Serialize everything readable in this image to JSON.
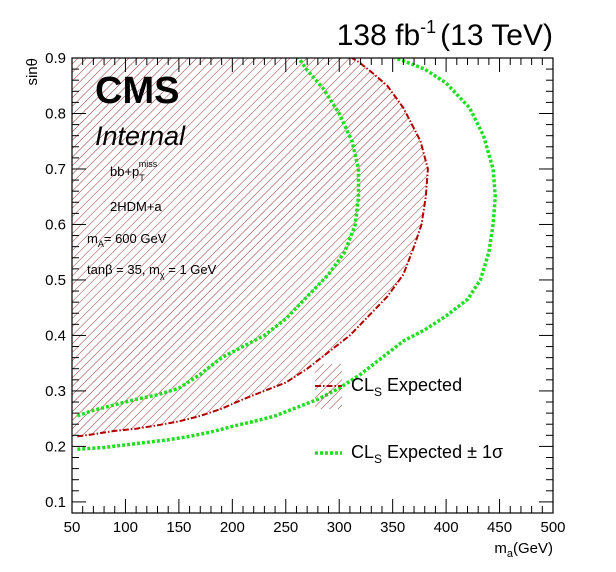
{
  "header": {
    "lumi": "138 fb",
    "lumi_sup": "-1",
    "energy": "(13 TeV)"
  },
  "labels": {
    "cms": "CMS",
    "internal": "Internal",
    "info1": "bb+p",
    "info1_sub": "T",
    "info1_sup": "miss",
    "info2": "2HDM+a",
    "info3_pre": "m",
    "info3_sub": "A",
    "info3_post": "= 600 GeV",
    "info4_pre": "tanβ = 35, m",
    "info4_sub": "χ",
    "info4_post": " = 1 GeV"
  },
  "legend": {
    "expected_pre": "CL",
    "expected_sub": "S",
    "expected_post": " Expected",
    "band_pre": "CL",
    "band_sub": "S",
    "band_post": " Expected ± 1σ"
  },
  "colors": {
    "expected": "#b00000",
    "band": "#22dd22",
    "hatch": "#8b2020"
  },
  "chart_data": {
    "type": "line",
    "xlabel_pre": "m",
    "xlabel_sub": "a",
    "xlabel_post": "(GeV)",
    "ylabel": "sinθ",
    "xlim": [
      50,
      500
    ],
    "ylim": [
      0.08,
      0.9
    ],
    "x_ticks": [
      50,
      100,
      150,
      200,
      250,
      300,
      350,
      400,
      450,
      500
    ],
    "y_ticks": [
      0.1,
      0.2,
      0.3,
      0.4,
      0.5,
      0.6,
      0.7,
      0.8,
      0.9
    ],
    "series": [
      {
        "key": "expected",
        "style": "dash-dot",
        "points": [
          [
            55,
            0.218
          ],
          [
            70,
            0.222
          ],
          [
            90,
            0.228
          ],
          [
            110,
            0.232
          ],
          [
            130,
            0.238
          ],
          [
            150,
            0.245
          ],
          [
            170,
            0.255
          ],
          [
            190,
            0.268
          ],
          [
            210,
            0.285
          ],
          [
            230,
            0.3
          ],
          [
            250,
            0.315
          ],
          [
            270,
            0.34
          ],
          [
            290,
            0.37
          ],
          [
            310,
            0.4
          ],
          [
            330,
            0.44
          ],
          [
            345,
            0.47
          ],
          [
            360,
            0.51
          ],
          [
            370,
            0.56
          ],
          [
            377,
            0.6
          ],
          [
            381,
            0.65
          ],
          [
            383,
            0.7
          ],
          [
            376,
            0.75
          ],
          [
            360,
            0.81
          ],
          [
            345,
            0.85
          ],
          [
            330,
            0.875
          ],
          [
            318,
            0.893
          ],
          [
            312,
            0.9
          ]
        ]
      },
      {
        "key": "band_low",
        "style": "dotted",
        "points": [
          [
            55,
            0.195
          ],
          [
            80,
            0.198
          ],
          [
            110,
            0.205
          ],
          [
            140,
            0.212
          ],
          [
            160,
            0.218
          ],
          [
            180,
            0.226
          ],
          [
            200,
            0.236
          ],
          [
            220,
            0.245
          ],
          [
            240,
            0.255
          ],
          [
            260,
            0.27
          ],
          [
            280,
            0.285
          ],
          [
            300,
            0.305
          ],
          [
            320,
            0.33
          ],
          [
            340,
            0.36
          ],
          [
            360,
            0.39
          ],
          [
            380,
            0.41
          ],
          [
            400,
            0.435
          ],
          [
            420,
            0.465
          ],
          [
            432,
            0.5
          ],
          [
            440,
            0.55
          ],
          [
            444,
            0.6
          ],
          [
            446,
            0.65
          ],
          [
            444,
            0.7
          ],
          [
            435,
            0.76
          ],
          [
            422,
            0.81
          ],
          [
            400,
            0.855
          ],
          [
            380,
            0.88
          ],
          [
            360,
            0.895
          ],
          [
            352,
            0.9
          ]
        ]
      },
      {
        "key": "band_high",
        "style": "dotted",
        "points": [
          [
            55,
            0.255
          ],
          [
            70,
            0.265
          ],
          [
            90,
            0.275
          ],
          [
            110,
            0.285
          ],
          [
            130,
            0.293
          ],
          [
            150,
            0.305
          ],
          [
            170,
            0.33
          ],
          [
            190,
            0.36
          ],
          [
            210,
            0.38
          ],
          [
            230,
            0.4
          ],
          [
            250,
            0.43
          ],
          [
            270,
            0.47
          ],
          [
            290,
            0.51
          ],
          [
            305,
            0.55
          ],
          [
            315,
            0.6
          ],
          [
            318,
            0.65
          ],
          [
            318,
            0.7
          ],
          [
            312,
            0.75
          ],
          [
            300,
            0.8
          ],
          [
            285,
            0.845
          ],
          [
            270,
            0.878
          ],
          [
            262,
            0.9
          ]
        ]
      }
    ]
  }
}
